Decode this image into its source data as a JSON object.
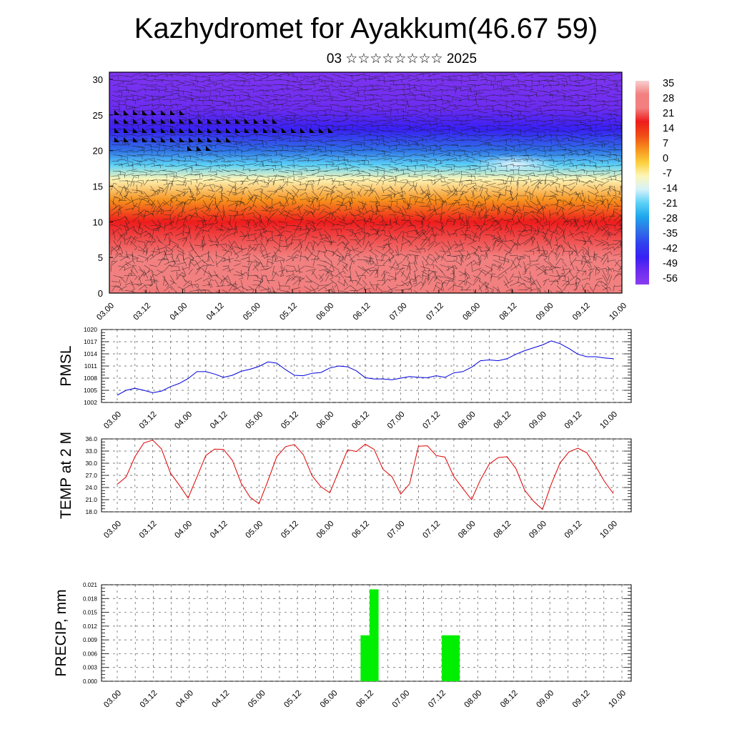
{
  "title": "Kazhydromet for Ayakkum(46.67 59)",
  "subtitle": "03 ☆☆☆☆☆☆☆☆ 2025",
  "chart_data": [
    {
      "type": "heatmap",
      "name": "vertical-section",
      "title": "",
      "xlabel": "",
      "ylabel": "",
      "x_ticks": [
        "03.00",
        "03.12",
        "04.00",
        "04.12",
        "05.00",
        "05.12",
        "06.00",
        "06.12",
        "07.00",
        "07.12",
        "08.00",
        "08.12",
        "09.00",
        "09.12",
        "10.00"
      ],
      "y_ticks": [
        0,
        5,
        10,
        15,
        20,
        25,
        30
      ],
      "ylim": [
        0,
        31
      ],
      "colorbar_labels": [
        35,
        28,
        21,
        14,
        7,
        0,
        -7,
        -14,
        -21,
        -28,
        -35,
        -42,
        -49,
        -56
      ],
      "colorbar_range": [
        -63,
        42
      ],
      "temperature_profile": [
        {
          "level": 0,
          "value": 35
        },
        {
          "level": 5,
          "value": 28
        },
        {
          "level": 10,
          "value": 21
        },
        {
          "level": 13,
          "value": 7
        },
        {
          "level": 16,
          "value": -7
        },
        {
          "level": 18,
          "value": -21
        },
        {
          "level": 20,
          "value": -35
        },
        {
          "level": 23,
          "value": -49
        },
        {
          "level": 26,
          "value": -56
        },
        {
          "level": 31,
          "value": -60
        }
      ],
      "wind": "barbs",
      "colors": {
        "c35": "#f7d0d0",
        "c28": "#f28080",
        "c21": "#ee1c1c",
        "c14": "#f04a16",
        "c7": "#f6901c",
        "c0": "#fccf3c",
        "cm7": "#fdf6b8",
        "cm14": "#d6f2fb",
        "cm21": "#5bd1f7",
        "cm28": "#1ea6ec",
        "cm35": "#2f72e6",
        "cm42": "#3040ee",
        "cm49": "#3820f4",
        "cm56": "#6d2cf0",
        "cm63": "#8a3cf0"
      }
    },
    {
      "type": "line",
      "name": "pmsl",
      "title": "",
      "xlabel": "",
      "ylabel": "PMSL",
      "x_ticks": [
        "03.00",
        "03.12",
        "04.00",
        "04.12",
        "05.00",
        "05.12",
        "06.00",
        "06.12",
        "07.00",
        "07.12",
        "08.00",
        "08.12",
        "09.00",
        "09.12",
        "10.00"
      ],
      "y_ticks": [
        1002,
        1005,
        1008,
        1011,
        1014,
        1017,
        1020
      ],
      "ylim": [
        1002,
        1020
      ],
      "color": "#0000dd",
      "x_hours": [
        0,
        3,
        6,
        9,
        12,
        15,
        18,
        21,
        24,
        27,
        30,
        33,
        36,
        39,
        42,
        45,
        48,
        51,
        54,
        57,
        60,
        63,
        66,
        69,
        72,
        75,
        78,
        81,
        84,
        87,
        90,
        93,
        96,
        99,
        102,
        105,
        108,
        111,
        114,
        117,
        120,
        123,
        126,
        129,
        132,
        135,
        138,
        141,
        144,
        147,
        150,
        153,
        156,
        159,
        162,
        165,
        168
      ],
      "values": [
        1003.8,
        1005.0,
        1005.5,
        1005.0,
        1004.4,
        1004.8,
        1005.9,
        1006.7,
        1007.9,
        1009.6,
        1009.6,
        1009.0,
        1008.2,
        1008.7,
        1009.7,
        1010.2,
        1010.9,
        1012.0,
        1011.7,
        1010.1,
        1008.7,
        1008.6,
        1009.2,
        1009.4,
        1010.5,
        1011.0,
        1010.8,
        1009.8,
        1008.1,
        1007.8,
        1007.8,
        1007.6,
        1008.0,
        1008.4,
        1008.2,
        1008.1,
        1008.6,
        1008.2,
        1009.3,
        1009.6,
        1010.7,
        1012.3,
        1012.5,
        1012.3,
        1012.8,
        1013.9,
        1014.8,
        1015.5,
        1016.2,
        1017.2,
        1016.5,
        1015.3,
        1013.9,
        1013.3,
        1013.3,
        1013.0,
        1012.8
      ]
    },
    {
      "type": "line",
      "name": "temp2m",
      "title": "",
      "xlabel": "",
      "ylabel": "TEMP at 2 M",
      "x_ticks": [
        "03.00",
        "03.12",
        "04.00",
        "04.12",
        "05.00",
        "05.12",
        "06.00",
        "06.12",
        "07.00",
        "07.12",
        "08.00",
        "08.12",
        "09.00",
        "09.12",
        "10.00"
      ],
      "y_ticks": [
        "18.0",
        "21.0",
        "24.0",
        "27.0",
        "30.0",
        "33.0",
        "36.0"
      ],
      "ylim": [
        18,
        36
      ],
      "color": "#dd0000",
      "x_hours": [
        0,
        3,
        6,
        9,
        12,
        15,
        18,
        21,
        24,
        27,
        30,
        33,
        36,
        39,
        42,
        45,
        48,
        51,
        54,
        57,
        60,
        63,
        66,
        69,
        72,
        75,
        78,
        81,
        84,
        87,
        90,
        93,
        96,
        99,
        102,
        105,
        108,
        111,
        114,
        117,
        120,
        123,
        126,
        129,
        132,
        135,
        138,
        141,
        144,
        147,
        150,
        153,
        156,
        159,
        162,
        165,
        168
      ],
      "values": [
        24.8,
        26.6,
        31.6,
        35.0,
        35.7,
        33.5,
        27.6,
        24.6,
        21.4,
        26.6,
        31.9,
        33.5,
        33.4,
        30.7,
        25.0,
        21.6,
        20.0,
        25.6,
        31.6,
        34.1,
        34.6,
        32.1,
        26.9,
        24.2,
        22.7,
        28.0,
        33.3,
        32.9,
        34.7,
        33.4,
        28.5,
        26.7,
        22.4,
        24.9,
        34.2,
        34.3,
        31.9,
        31.5,
        26.7,
        23.8,
        21.0,
        25.9,
        29.8,
        31.4,
        31.6,
        28.7,
        23.3,
        20.6,
        18.6,
        24.9,
        30.1,
        32.8,
        33.7,
        32.6,
        29.3,
        25.5,
        22.5
      ]
    },
    {
      "type": "bar",
      "name": "precip",
      "title": "",
      "xlabel": "",
      "ylabel": "PRECIP, mm",
      "x_ticks": [
        "03.00",
        "03.12",
        "04.00",
        "04.12",
        "05.00",
        "05.12",
        "06.00",
        "06.12",
        "07.00",
        "07.12",
        "08.00",
        "08.12",
        "09.00",
        "09.12",
        "10.00"
      ],
      "y_ticks": [
        "0.000",
        "0.003",
        "0.006",
        "0.009",
        "0.012",
        "0.015",
        "0.018",
        "0.021"
      ],
      "ylim": [
        0,
        0.021
      ],
      "color": "#00ee00",
      "bars": [
        {
          "start_hour": 81,
          "end_hour": 84,
          "value": 0.01
        },
        {
          "start_hour": 84,
          "end_hour": 87,
          "value": 0.02
        },
        {
          "start_hour": 108,
          "end_hour": 111,
          "value": 0.01
        },
        {
          "start_hour": 111,
          "end_hour": 114,
          "value": 0.01
        }
      ]
    }
  ]
}
